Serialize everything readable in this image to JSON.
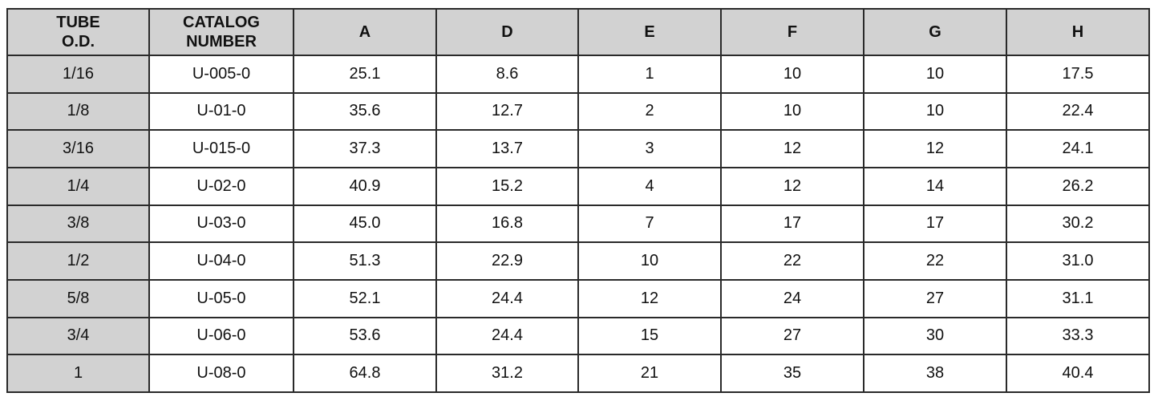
{
  "table": {
    "header": [
      [
        "TUBE",
        "O.D."
      ],
      [
        "CATALOG",
        "NUMBER"
      ],
      [
        "A"
      ],
      [
        "D"
      ],
      [
        "E"
      ],
      [
        "F"
      ],
      [
        "G"
      ],
      [
        "H"
      ]
    ],
    "rows": [
      [
        "1/16",
        "U-005-0",
        "25.1",
        "8.6",
        "1",
        "10",
        "10",
        "17.5"
      ],
      [
        "1/8",
        "U-01-0",
        "35.6",
        "12.7",
        "2",
        "10",
        "10",
        "22.4"
      ],
      [
        "3/16",
        "U-015-0",
        "37.3",
        "13.7",
        "3",
        "12",
        "12",
        "24.1"
      ],
      [
        "1/4",
        "U-02-0",
        "40.9",
        "15.2",
        "4",
        "12",
        "14",
        "26.2"
      ],
      [
        "3/8",
        "U-03-0",
        "45.0",
        "16.8",
        "7",
        "17",
        "17",
        "30.2"
      ],
      [
        "1/2",
        "U-04-0",
        "51.3",
        "22.9",
        "10",
        "22",
        "22",
        "31.0"
      ],
      [
        "5/8",
        "U-05-0",
        "52.1",
        "24.4",
        "12",
        "24",
        "27",
        "31.1"
      ],
      [
        "3/4",
        "U-06-0",
        "53.6",
        "24.4",
        "15",
        "27",
        "30",
        "33.3"
      ],
      [
        "1",
        "U-08-0",
        "64.8",
        "31.2",
        "21",
        "35",
        "38",
        "40.4"
      ]
    ]
  }
}
